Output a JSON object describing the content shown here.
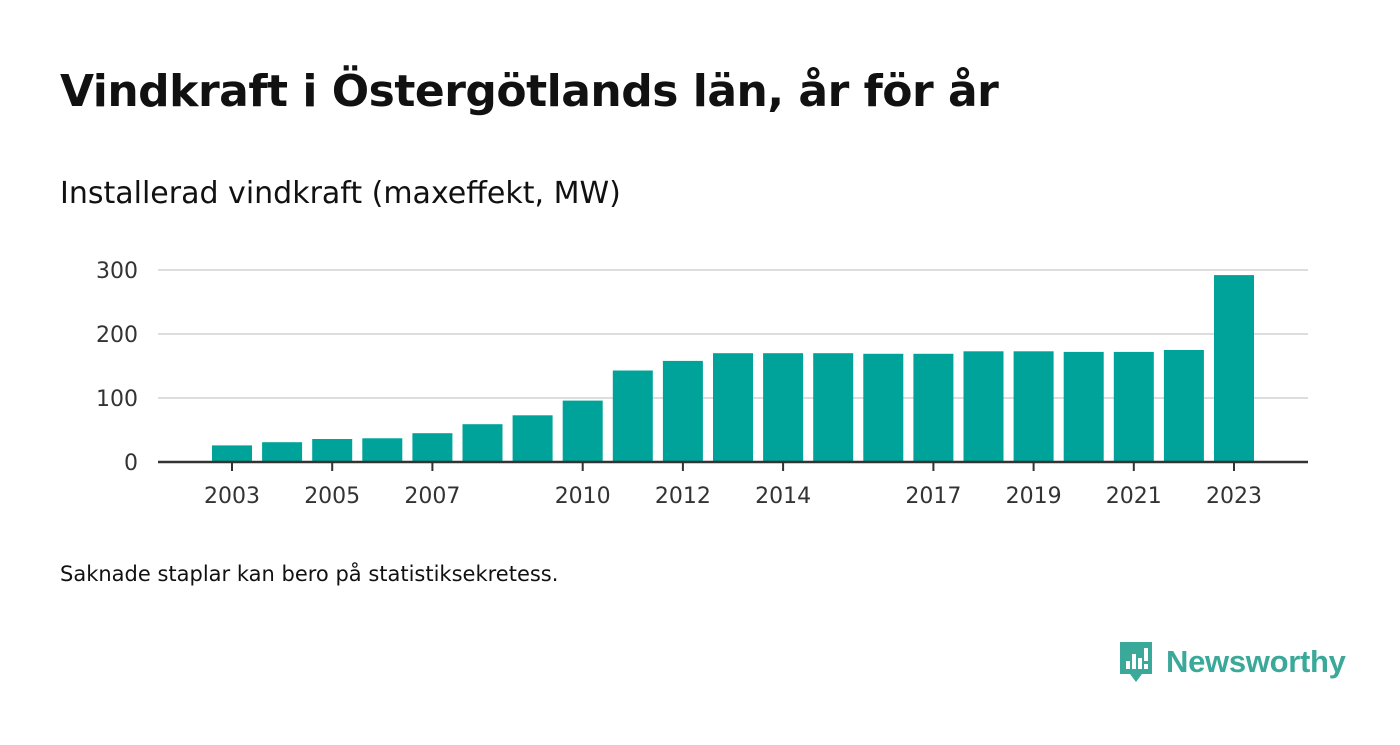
{
  "header": {
    "title": "Vindkraft i Östergötlands län, år för år",
    "subtitle": "Installerad vindkraft (maxeffekt, MW)"
  },
  "footer": {
    "note": "Saknade staplar kan bero på statistiksekretess.",
    "brand": "Newsworthy"
  },
  "colors": {
    "bar": "#00a39a",
    "grid": "#dddddd",
    "axis": "#333333",
    "brand": "#3aa99a"
  },
  "chart_data": {
    "type": "bar",
    "years": [
      2003,
      2004,
      2005,
      2006,
      2007,
      2008,
      2009,
      2010,
      2011,
      2012,
      2013,
      2014,
      2015,
      2016,
      2017,
      2018,
      2019,
      2020,
      2021,
      2022,
      2023
    ],
    "values": [
      26,
      31,
      36,
      37,
      45,
      59,
      73,
      96,
      143,
      158,
      170,
      170,
      170,
      169,
      169,
      173,
      173,
      172,
      172,
      175,
      292
    ],
    "x_tick_labels": [
      "2003",
      "2005",
      "2007",
      "2010",
      "2012",
      "2014",
      "2017",
      "2019",
      "2021",
      "2023"
    ],
    "y_ticks": [
      0,
      100,
      200,
      300
    ],
    "ylim": [
      0,
      300
    ],
    "grid": true,
    "xlabel": "",
    "ylabel": ""
  }
}
